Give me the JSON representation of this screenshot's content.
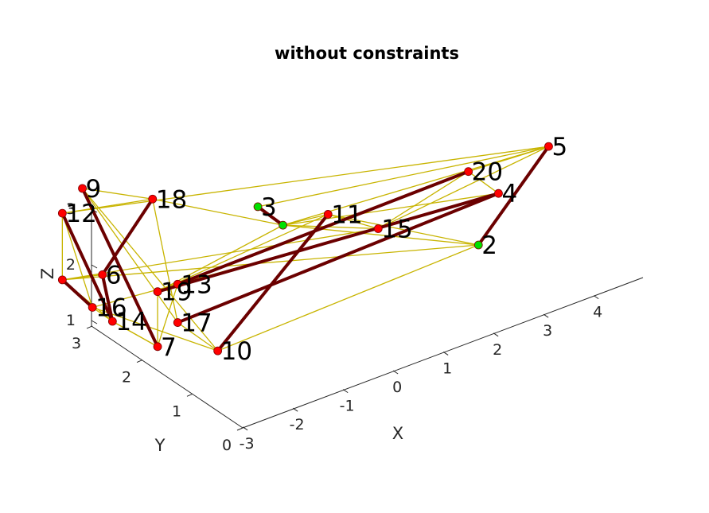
{
  "chart_data": {
    "type": "3d-network",
    "title": "without constraints",
    "xlabel": "X",
    "ylabel": "Y",
    "zlabel": "Z",
    "x_ticks": [
      "-3",
      "-2",
      "-1",
      "0",
      "1",
      "2",
      "3",
      "4"
    ],
    "y_ticks": [
      "0",
      "1",
      "2",
      "3"
    ],
    "z_ticks": [
      "1",
      "2",
      "3"
    ],
    "colors": {
      "thin_edge": "#c8b400",
      "thick_edge": "#6b0000",
      "node_red": "#ff0000",
      "node_green": "#00e000"
    },
    "nodes": [
      {
        "id": "2",
        "label": "2",
        "x": 2.3,
        "y": 0.6,
        "z": 1.6,
        "color": "green"
      },
      {
        "id": "3",
        "label": "3",
        "x": -1.2,
        "y": 1.5,
        "z": 2.9,
        "color": "green"
      },
      {
        "id": "3b",
        "label": "",
        "x": -0.8,
        "y": 1.4,
        "z": 2.5,
        "color": "green"
      },
      {
        "id": "4",
        "label": "4",
        "x": 3.0,
        "y": 0.9,
        "z": 2.1,
        "color": "red"
      },
      {
        "id": "5",
        "label": "5",
        "x": 4.0,
        "y": 0.9,
        "z": 2.6,
        "color": "red"
      },
      {
        "id": "6",
        "label": "6",
        "x": -3.2,
        "y": 2.6,
        "z": 1.7,
        "color": "red"
      },
      {
        "id": "7",
        "label": "7",
        "x": -3.0,
        "y": 1.7,
        "z": 0.9,
        "color": "red"
      },
      {
        "id": "8",
        "label": "",
        "x": -3.6,
        "y": 3.0,
        "z": 1.5,
        "color": "red"
      },
      {
        "id": "9",
        "label": "9",
        "x": -3.0,
        "y": 3.2,
        "z": 2.8,
        "color": "red"
      },
      {
        "id": "10",
        "label": "10",
        "x": -2.2,
        "y": 1.3,
        "z": 0.8,
        "color": "red"
      },
      {
        "id": "11",
        "label": "11",
        "x": 0.2,
        "y": 1.5,
        "z": 2.3,
        "color": "red"
      },
      {
        "id": "12",
        "label": "12",
        "x": -3.3,
        "y": 3.3,
        "z": 2.4,
        "color": "red"
      },
      {
        "id": "13",
        "label": "13",
        "x": -2.2,
        "y": 2.1,
        "z": 1.5,
        "color": "red"
      },
      {
        "id": "14",
        "label": "14",
        "x": -3.1,
        "y": 2.5,
        "z": 0.9,
        "color": "red"
      },
      {
        "id": "15",
        "label": "15",
        "x": 1.0,
        "y": 1.3,
        "z": 1.9,
        "color": "red"
      },
      {
        "id": "16",
        "label": "16",
        "x": -3.2,
        "y": 2.8,
        "z": 1.0,
        "color": "red"
      },
      {
        "id": "17",
        "label": "17",
        "x": -2.5,
        "y": 1.8,
        "z": 1.1,
        "color": "red"
      },
      {
        "id": "18",
        "label": "18",
        "x": -2.3,
        "y": 2.5,
        "z": 2.8,
        "color": "red"
      },
      {
        "id": "19",
        "label": "19",
        "x": -2.6,
        "y": 2.1,
        "z": 1.5,
        "color": "red"
      },
      {
        "id": "20",
        "label": "20",
        "x": 2.6,
        "y": 1.1,
        "z": 2.5,
        "color": "red"
      }
    ],
    "thick_edges": [
      [
        "3",
        "3b"
      ],
      [
        "9",
        "7"
      ],
      [
        "12",
        "14"
      ],
      [
        "18",
        "6"
      ],
      [
        "5",
        "2"
      ],
      [
        "20",
        "13"
      ],
      [
        "11",
        "10"
      ],
      [
        "17",
        "4"
      ],
      [
        "19",
        "4"
      ],
      [
        "8",
        "16"
      ],
      [
        "6",
        "14"
      ]
    ],
    "thin_edges": [
      [
        "3",
        "5"
      ],
      [
        "3",
        "3b"
      ],
      [
        "3b",
        "5"
      ],
      [
        "3b",
        "2"
      ],
      [
        "3b",
        "18"
      ],
      [
        "3b",
        "19"
      ],
      [
        "3b",
        "4"
      ],
      [
        "3b",
        "15"
      ],
      [
        "3b",
        "11"
      ],
      [
        "18",
        "9"
      ],
      [
        "18",
        "12"
      ],
      [
        "18",
        "17"
      ],
      [
        "9",
        "17"
      ],
      [
        "9",
        "10"
      ],
      [
        "12",
        "5"
      ],
      [
        "12",
        "8"
      ],
      [
        "12",
        "16"
      ],
      [
        "8",
        "14"
      ],
      [
        "8",
        "6"
      ],
      [
        "8",
        "15"
      ],
      [
        "14",
        "7"
      ],
      [
        "14",
        "16"
      ],
      [
        "16",
        "10"
      ],
      [
        "16",
        "13"
      ],
      [
        "7",
        "19"
      ],
      [
        "7",
        "13"
      ],
      [
        "7",
        "14"
      ],
      [
        "17",
        "10"
      ],
      [
        "17",
        "4"
      ],
      [
        "19",
        "20"
      ],
      [
        "19",
        "11"
      ],
      [
        "13",
        "15"
      ],
      [
        "10",
        "2"
      ],
      [
        "11",
        "2"
      ],
      [
        "11",
        "15"
      ],
      [
        "15",
        "20"
      ],
      [
        "15",
        "5"
      ],
      [
        "20",
        "4"
      ],
      [
        "20",
        "5"
      ],
      [
        "2",
        "5"
      ],
      [
        "2",
        "8"
      ]
    ]
  }
}
